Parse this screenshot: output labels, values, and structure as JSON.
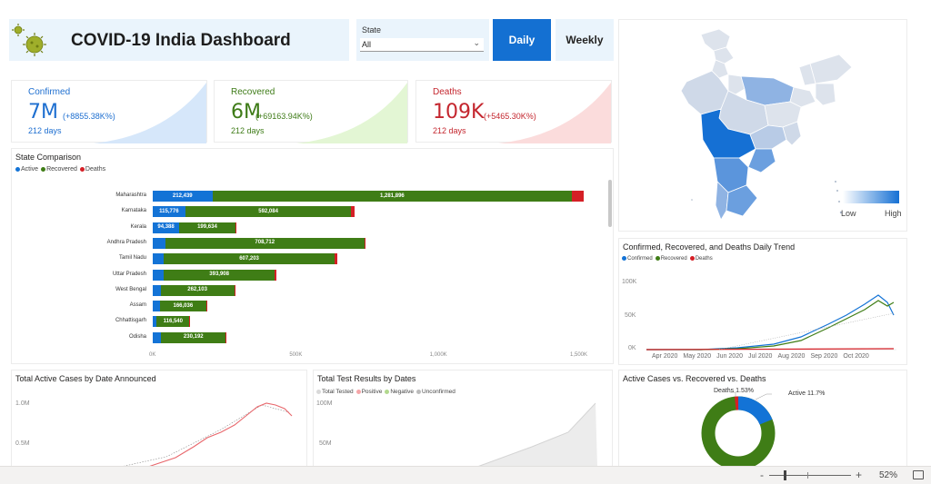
{
  "header": {
    "title": "COVID-19 India Dashboard",
    "state_label": "State",
    "state_value": "All",
    "daily_label": "Daily",
    "weekly_label": "Weekly"
  },
  "kpis": {
    "confirmed": {
      "label": "Confirmed",
      "value": "7M",
      "delta": "(+8855.38K%)",
      "days": "212 days",
      "color": "#1e6fd0",
      "spark": "#d6e7fa"
    },
    "recovered": {
      "label": "Recovered",
      "value": "6M",
      "delta": "(+69163.94K%)",
      "days": "212 days",
      "color": "#3e7b17",
      "spark": "#e3f6d4"
    },
    "deaths": {
      "label": "Deaths",
      "value": "109K",
      "delta": "(+5465.30K%)",
      "days": "212 days",
      "color": "#c4262e",
      "spark": "#fbdcdc"
    }
  },
  "state_comparison": {
    "title": "State Comparison",
    "legend": [
      "Active",
      "Recovered",
      "Deaths"
    ],
    "colors": {
      "active": "#1373d6",
      "recovered": "#3f7d16",
      "deaths": "#d51f26"
    },
    "x_ticks": [
      "0K",
      "500K",
      "1,000K",
      "1,500K"
    ],
    "chart_data": {
      "type": "bar",
      "categories": [
        "Maharashtra",
        "Karnataka",
        "Kerala",
        "Andhra Pradesh",
        "Tamil Nadu",
        "Uttar Pradesh",
        "West Bengal",
        "Assam",
        "Chhattisgarh",
        "Odisha"
      ],
      "series": [
        {
          "name": "Active",
          "values": [
            212439,
            115776,
            94388,
            45000,
            40000,
            40000,
            28000,
            25000,
            14000,
            30000
          ]
        },
        {
          "name": "Recovered",
          "values": [
            1281896,
            592084,
            199634,
            708712,
            607203,
            393908,
            262103,
            166036,
            116540,
            230192
          ]
        },
        {
          "name": "Deaths",
          "values": [
            40000,
            10000,
            1000,
            6000,
            10000,
            6000,
            5000,
            900,
            1000,
            1000
          ]
        }
      ],
      "labels": {
        "active": [
          "212,439",
          "115,776",
          "94,388",
          "",
          "",
          "",
          "",
          "",
          "",
          ""
        ],
        "recovered": [
          "1,281,896",
          "592,084",
          "199,634",
          "708,712",
          "607,203",
          "393,908",
          "262,103",
          "166,036",
          "116,540",
          "230,192"
        ]
      },
      "xlim": [
        0,
        1500000
      ]
    }
  },
  "map": {
    "low_label": "Low",
    "high_label": "High"
  },
  "trend": {
    "title": "Confirmed, Recovered, and Deaths Daily Trend",
    "legend": [
      "Confirmed",
      "Recovered",
      "Deaths"
    ],
    "y_ticks": [
      "100K",
      "50K",
      "0K"
    ],
    "x_ticks": [
      "Apr 2020",
      "May 2020",
      "Jun 2020",
      "Jul 2020",
      "Aug 2020",
      "Sep 2020",
      "Oct 2020"
    ]
  },
  "active_by_date": {
    "title": "Total Active Cases by Date Announced",
    "y_ticks": [
      "1.0M",
      "0.5M"
    ]
  },
  "tests": {
    "title": "Total Test Results by Dates",
    "legend": [
      "Total Tested",
      "Positive",
      "Negative",
      "Unconfirmed"
    ],
    "y_ticks": [
      "100M",
      "50M"
    ]
  },
  "donut": {
    "title": "Active Cases vs. Recovered vs. Deaths",
    "deaths_label": "Deaths 1.53%",
    "active_label": "Active 11.7%",
    "chart_data": {
      "type": "pie",
      "categories": [
        "Recovered",
        "Active",
        "Deaths"
      ],
      "values": [
        86.77,
        11.7,
        1.53
      ]
    }
  },
  "statusbar": {
    "zoom_minus": "-",
    "zoom_plus": "+",
    "zoom_level": "52%"
  }
}
